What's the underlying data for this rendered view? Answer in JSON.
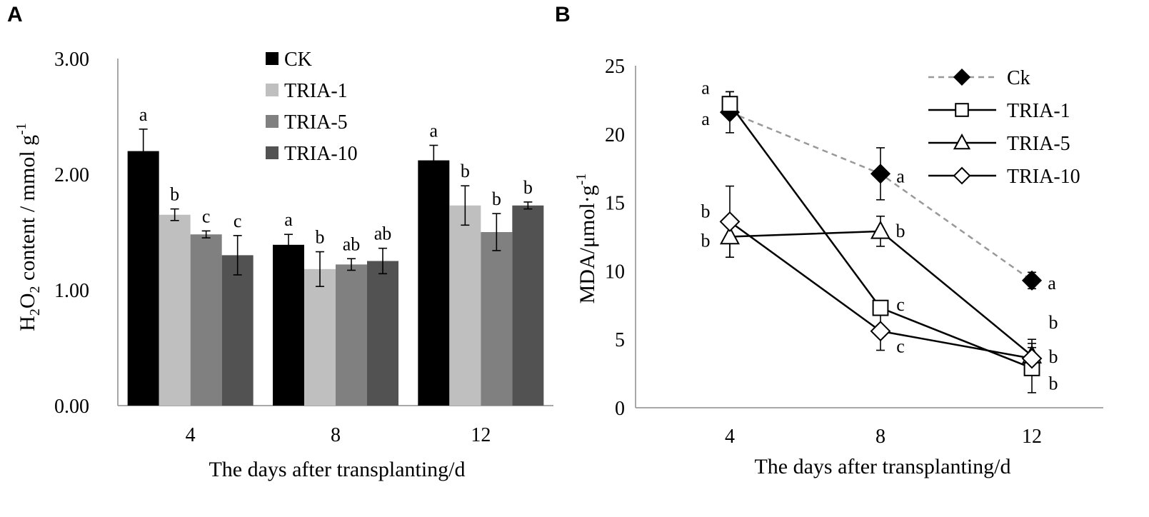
{
  "chart_data": [
    {
      "panel": "A",
      "type": "bar",
      "xlabel": "The days after transplanting/d",
      "ylabel": "H2O2 content / mmol g-1",
      "ylabel_parts": {
        "h": "H",
        "sub1": "2",
        "o": "O",
        "sub2": "2",
        "rest": " content / mmol g",
        "sup": "-1"
      },
      "ylim": [
        0,
        3
      ],
      "yticks": [
        "0.00",
        "1.00",
        "2.00",
        "3.00"
      ],
      "yticks_values": [
        0,
        1,
        2,
        3
      ],
      "categories": [
        "4",
        "8",
        "12"
      ],
      "legend_position": "top-center",
      "series": [
        {
          "name": "CK",
          "color": "#000000",
          "values": [
            2.2,
            1.39,
            2.12
          ],
          "errors": [
            0.19,
            0.09,
            0.13
          ],
          "letters": [
            "a",
            "a",
            "a"
          ]
        },
        {
          "name": "TRIA-1",
          "color": "#bfbfbf",
          "values": [
            1.65,
            1.18,
            1.73
          ],
          "errors": [
            0.05,
            0.15,
            0.17
          ],
          "letters": [
            "b",
            "b",
            "b"
          ]
        },
        {
          "name": "TRIA-5",
          "color": "#808080",
          "values": [
            1.48,
            1.22,
            1.5
          ],
          "errors": [
            0.03,
            0.05,
            0.16
          ],
          "letters": [
            "c",
            "ab",
            "b"
          ]
        },
        {
          "name": "TRIA-10",
          "color": "#525252",
          "values": [
            1.3,
            1.25,
            1.73
          ],
          "errors": [
            0.17,
            0.11,
            0.03
          ],
          "letters": [
            "c",
            "ab",
            "b"
          ]
        }
      ]
    },
    {
      "panel": "B",
      "type": "line",
      "xlabel": "The days after transplanting/d",
      "ylabel": "MDA/μmol·g-1",
      "ylabel_parts": {
        "base": "MDA/μmol·g",
        "sup": "-1"
      },
      "ylim": [
        0,
        25
      ],
      "yticks": [
        "0",
        "5",
        "10",
        "15",
        "20",
        "25"
      ],
      "yticks_values": [
        0,
        5,
        10,
        15,
        20,
        25
      ],
      "x": [
        "4",
        "8",
        "12"
      ],
      "legend_position": "top-right",
      "series": [
        {
          "name": "Ck",
          "marker": "diamond-filled",
          "line": "dashed",
          "color": "#999999",
          "values": [
            21.6,
            17.1,
            9.3
          ],
          "errors": [
            1.5,
            1.9,
            0.6
          ],
          "letters": [
            "a",
            "a",
            "a"
          ]
        },
        {
          "name": "TRIA-1",
          "marker": "square-open",
          "line": "solid",
          "color": "#000000",
          "values": [
            22.2,
            7.3,
            2.9
          ],
          "errors": [
            0.9,
            0.5,
            1.8
          ],
          "letters": [
            "a",
            "c",
            "b"
          ]
        },
        {
          "name": "TRIA-5",
          "marker": "triangle-open",
          "line": "solid",
          "color": "#000000",
          "values": [
            12.5,
            12.9,
            3.8
          ],
          "errors": [
            1.5,
            1.1,
            1.2
          ],
          "letters": [
            "b",
            "b",
            "b"
          ]
        },
        {
          "name": "TRIA-10",
          "marker": "diamond-open",
          "line": "solid",
          "color": "#000000",
          "values": [
            13.6,
            5.6,
            3.6
          ],
          "errors": [
            2.6,
            1.4,
            0.8
          ],
          "letters": [
            "b",
            "c",
            "b"
          ]
        }
      ]
    }
  ]
}
